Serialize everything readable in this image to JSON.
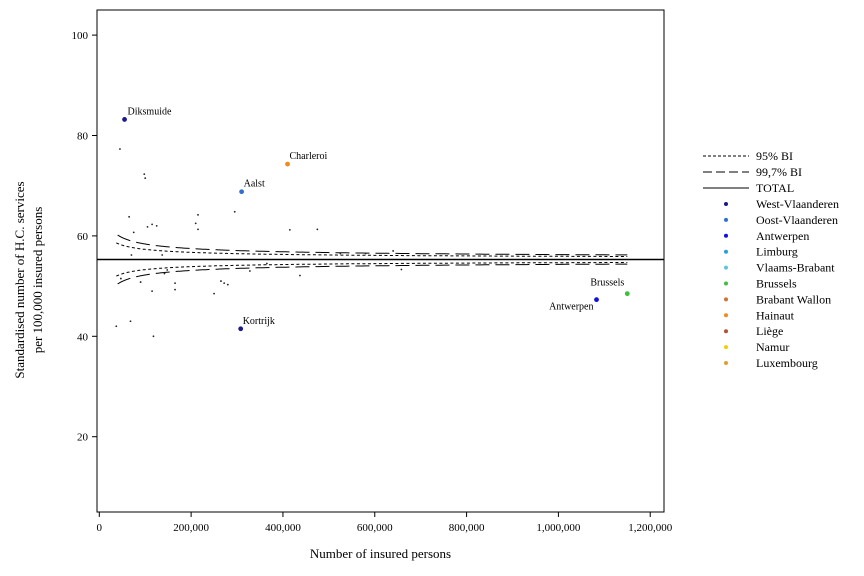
{
  "chart_data": {
    "type": "scatter",
    "title": "",
    "xlabel": "Number of insured persons",
    "ylabel_line1": "Standardised number of H.C. services",
    "ylabel_line2": "per 100,000 insured persons",
    "xlim": [
      -5000,
      1230000
    ],
    "ylim": [
      5,
      105
    ],
    "xticks": [
      0,
      200000,
      400000,
      600000,
      800000,
      1000000,
      1200000
    ],
    "xtick_labels": [
      "0",
      "200,000",
      "400,000",
      "600,000",
      "800,000",
      "1,000,000",
      "1,200,000"
    ],
    "yticks": [
      20,
      40,
      60,
      80,
      100
    ],
    "ytick_labels": [
      "20",
      "40",
      "60",
      "80",
      "100"
    ],
    "grid": false,
    "legend_position": "right",
    "total_mean": 55.3,
    "reference_lines": [
      {
        "name": "95% BI",
        "style": "dotted",
        "z": 1.96
      },
      {
        "name": "99,7% BI",
        "style": "dashed",
        "z": 3.0
      },
      {
        "name": "TOTAL",
        "style": "solid"
      }
    ],
    "legend": {
      "lines": [
        "95% BI",
        "99,7% BI",
        "TOTAL"
      ],
      "provinces": [
        {
          "name": "West-Vlaanderen",
          "color": "#1a1a8c"
        },
        {
          "name": "Oost-Vlaanderen",
          "color": "#2f6fd1"
        },
        {
          "name": "Antwerpen",
          "color": "#1010e0"
        },
        {
          "name": "Limburg",
          "color": "#2a9ee0"
        },
        {
          "name": "Vlaams-Brabant",
          "color": "#5ac8d8"
        },
        {
          "name": "Brussels",
          "color": "#3cc13c"
        },
        {
          "name": "Brabant Wallon",
          "color": "#d0703a"
        },
        {
          "name": "Hainaut",
          "color": "#f08a1a"
        },
        {
          "name": "Liège",
          "color": "#b5503a"
        },
        {
          "name": "Namur",
          "color": "#f0d000"
        },
        {
          "name": "Luxembourg",
          "color": "#e0a030"
        }
      ]
    },
    "labeled_points": [
      {
        "label": "Diksmuide",
        "x": 55000,
        "y": 83.2,
        "color": "#1a1a8c"
      },
      {
        "label": "Charleroi",
        "x": 410000,
        "y": 74.3,
        "color": "#f08a1a"
      },
      {
        "label": "Aalst",
        "x": 310000,
        "y": 68.8,
        "color": "#2f6fd1"
      },
      {
        "label": "Kortrijk",
        "x": 308000,
        "y": 41.5,
        "color": "#1a1a8c"
      },
      {
        "label": "Brussels",
        "x": 1150000,
        "y": 48.5,
        "color": "#3cc13c"
      },
      {
        "label": "Antwerpen",
        "x": 1083000,
        "y": 47.3,
        "color": "#1010e0"
      }
    ],
    "small_points": [
      {
        "x": 45000,
        "y": 77.3
      },
      {
        "x": 98000,
        "y": 72.3
      },
      {
        "x": 100000,
        "y": 71.5
      },
      {
        "x": 65000,
        "y": 63.8
      },
      {
        "x": 75000,
        "y": 60.7
      },
      {
        "x": 105000,
        "y": 61.8
      },
      {
        "x": 115000,
        "y": 62.3
      },
      {
        "x": 125000,
        "y": 62.0
      },
      {
        "x": 210000,
        "y": 62.5
      },
      {
        "x": 215000,
        "y": 64.2
      },
      {
        "x": 215000,
        "y": 61.3
      },
      {
        "x": 295000,
        "y": 64.8
      },
      {
        "x": 415000,
        "y": 61.2
      },
      {
        "x": 475000,
        "y": 61.3
      },
      {
        "x": 70000,
        "y": 56.2
      },
      {
        "x": 137000,
        "y": 56.2
      },
      {
        "x": 525000,
        "y": 56.5
      },
      {
        "x": 580000,
        "y": 56.5
      },
      {
        "x": 640000,
        "y": 57.0
      },
      {
        "x": 365000,
        "y": 54.5
      },
      {
        "x": 148000,
        "y": 53.2
      },
      {
        "x": 142000,
        "y": 52.5
      },
      {
        "x": 328000,
        "y": 53.0
      },
      {
        "x": 437000,
        "y": 52.1
      },
      {
        "x": 658000,
        "y": 53.3
      },
      {
        "x": 47000,
        "y": 51.5
      },
      {
        "x": 90000,
        "y": 50.8
      },
      {
        "x": 165000,
        "y": 50.6
      },
      {
        "x": 265000,
        "y": 51.0
      },
      {
        "x": 272000,
        "y": 50.6
      },
      {
        "x": 280000,
        "y": 50.3
      },
      {
        "x": 165000,
        "y": 49.3
      },
      {
        "x": 115000,
        "y": 49.0
      },
      {
        "x": 250000,
        "y": 48.5
      },
      {
        "x": 37000,
        "y": 42.0
      },
      {
        "x": 68000,
        "y": 43.0
      },
      {
        "x": 118000,
        "y": 40.0
      }
    ]
  }
}
